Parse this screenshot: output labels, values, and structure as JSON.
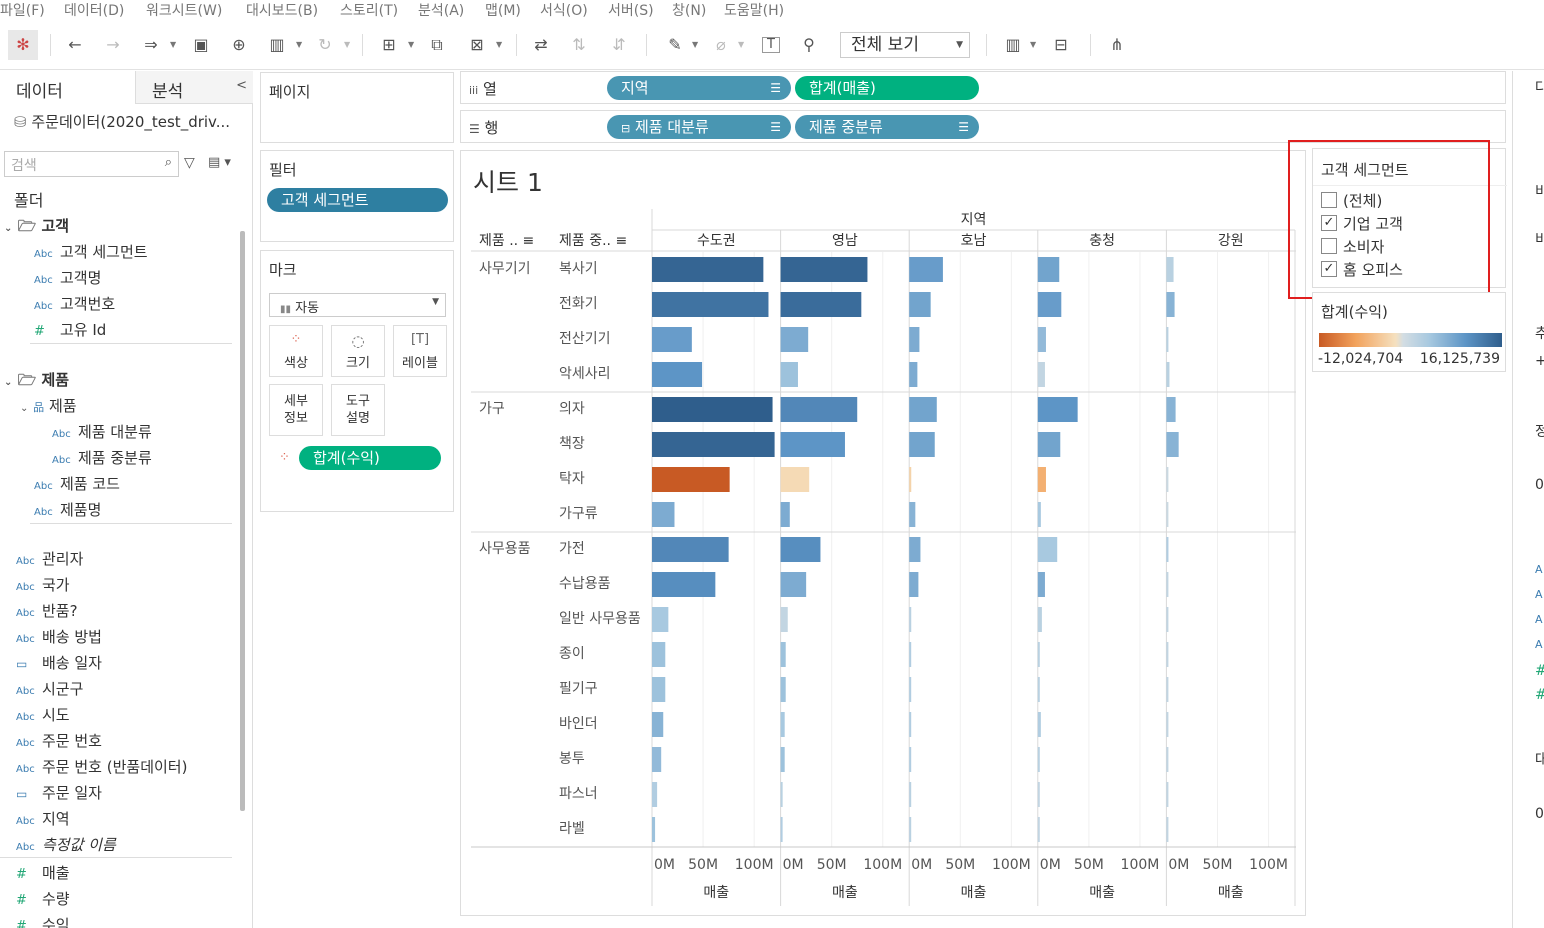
{
  "menu": [
    "파일(F)",
    "데이터(D)",
    "워크시트(W)",
    "대시보드(B)",
    "스토리(T)",
    "분석(A)",
    "맵(M)",
    "서식(O)",
    "서버(S)",
    "창(N)",
    "도움말(H)"
  ],
  "toolbar": {
    "view_select": "전체 보기",
    "icons": [
      "tableau-logo-icon",
      "undo-icon",
      "redo-icon",
      "replay-icon",
      "save-icon",
      "new-datasource-icon",
      "pause-update-icon",
      "refresh-icon",
      "new-worksheet-icon",
      "duplicate-sheet-icon",
      "clear-sheet-icon",
      "swap-icon",
      "sort-ascending-icon",
      "sort-descending-icon",
      "highlight-icon",
      "group-icon",
      "label-icon",
      "fix-axes-icon",
      "show-me-icon",
      "presentation-icon",
      "share-icon"
    ]
  },
  "data_panel": {
    "tab_data": "데이터",
    "tab_analysis": "분석",
    "datasource": "주문데이터(2020_test_driv...",
    "search_placeholder": "검색",
    "folder_header": "폴더",
    "groups": [
      {
        "name": "고객",
        "fields": [
          {
            "type": "Abc",
            "name": "고객 세그먼트"
          },
          {
            "type": "Abc",
            "name": "고객명"
          },
          {
            "type": "Abc",
            "name": "고객번호"
          },
          {
            "type": "#",
            "name": "고유 Id"
          }
        ]
      },
      {
        "name": "제품",
        "hierarchy": "제품",
        "fields": [
          {
            "type": "Abc",
            "name": "제품 대분류"
          },
          {
            "type": "Abc",
            "name": "제품 중분류"
          },
          {
            "type": "Abc",
            "name": "제품 코드"
          },
          {
            "type": "Abc",
            "name": "제품명"
          }
        ]
      }
    ],
    "other_fields": [
      {
        "type": "Abc",
        "name": "관리자"
      },
      {
        "type": "Abc",
        "name": "국가"
      },
      {
        "type": "Abc",
        "name": "반품?"
      },
      {
        "type": "Abc",
        "name": "배송 방법"
      },
      {
        "type": "cal",
        "name": "배송 일자"
      },
      {
        "type": "Abc",
        "name": "시군구"
      },
      {
        "type": "Abc",
        "name": "시도"
      },
      {
        "type": "Abc",
        "name": "주문 번호"
      },
      {
        "type": "Abc",
        "name": "주문 번호 (반품데이터)"
      },
      {
        "type": "cal",
        "name": "주문 일자"
      },
      {
        "type": "Abc",
        "name": "지역"
      },
      {
        "type": "Abc",
        "name": "측정값 이름"
      }
    ],
    "measures": [
      {
        "type": "#",
        "name": "매출"
      },
      {
        "type": "#",
        "name": "수량"
      },
      {
        "type": "#",
        "name": "수익"
      }
    ]
  },
  "cards": {
    "pages_title": "페이지",
    "filters_title": "필터",
    "filter_pill": "고객 세그먼트",
    "marks_title": "마크",
    "mark_type": "자동",
    "mark_buttons": [
      "색상",
      "크기",
      "레이블",
      "세부\n정보",
      "도구\n설명"
    ],
    "color_pill": "합계(수익)"
  },
  "shelves": {
    "columns_label": "열",
    "rows_label": "행",
    "columns_pills": [
      "지역",
      "합계(매출)"
    ],
    "rows_pills": [
      "제품 대분류",
      "제품 중분류"
    ]
  },
  "sheet_title": "시트 1",
  "legend_filter": {
    "title": "고객 세그먼트",
    "options": [
      {
        "label": "(전체)",
        "checked": false
      },
      {
        "label": "기업 고객",
        "checked": true
      },
      {
        "label": "소비자",
        "checked": false
      },
      {
        "label": "홈 오피스",
        "checked": true
      }
    ]
  },
  "legend_color": {
    "title": "합계(수익)",
    "min": "-12,024,704",
    "max": "16,125,739"
  },
  "side_strip": [
    "다",
    "비",
    "비",
    "추",
    "+",
    "정",
    "0",
    "A",
    "A",
    "A",
    "A",
    "#",
    "#",
    "대",
    "0"
  ],
  "chart_data": {
    "type": "bar",
    "orientation": "horizontal",
    "column_header": "지역",
    "row_headers": [
      "제품 ..",
      "제품 중.."
    ],
    "regions": [
      "수도권",
      "영남",
      "호남",
      "충청",
      "강원"
    ],
    "xlabel": "매출",
    "xlim": [
      0,
      120
    ],
    "xticks": [
      "0M",
      "50M",
      "100M"
    ],
    "categories": [
      {
        "name": "사무기기",
        "subs": [
          "복사기",
          "전화기",
          "전산기기",
          "악세사리"
        ]
      },
      {
        "name": "가구",
        "subs": [
          "의자",
          "책장",
          "탁자",
          "가구류"
        ]
      },
      {
        "name": "사무용품",
        "subs": [
          "가전",
          "수납용품",
          "일반 사무용품",
          "종이",
          "필기구",
          "바인더",
          "봉투",
          "파스너",
          "라벨"
        ]
      }
    ],
    "sales": {
      "수도권": [
        109,
        114,
        39,
        49,
        118,
        120,
        76,
        22,
        75,
        62,
        16,
        13,
        13,
        11,
        9,
        5,
        3
      ],
      "영남": [
        85,
        79,
        27,
        17,
        75,
        63,
        28,
        9,
        39,
        25,
        7,
        5,
        5,
        4,
        4,
        2,
        1
      ],
      "호남": [
        33,
        21,
        10,
        8,
        27,
        25,
        2,
        6,
        11,
        9,
        2,
        1,
        1,
        1,
        1,
        1,
        0.5
      ],
      "충청": [
        21,
        23,
        8,
        7,
        39,
        22,
        8,
        3,
        19,
        7,
        4,
        1,
        1,
        3,
        1,
        1,
        0.5
      ],
      "강원": [
        7,
        8,
        1,
        3,
        9,
        12,
        1,
        1,
        2,
        1,
        0.5,
        0.5,
        0.5,
        0.5,
        0.5,
        0.5,
        0.5
      ]
    },
    "color_scale": {
      "min": -12024704,
      "max": 16125739
    }
  }
}
